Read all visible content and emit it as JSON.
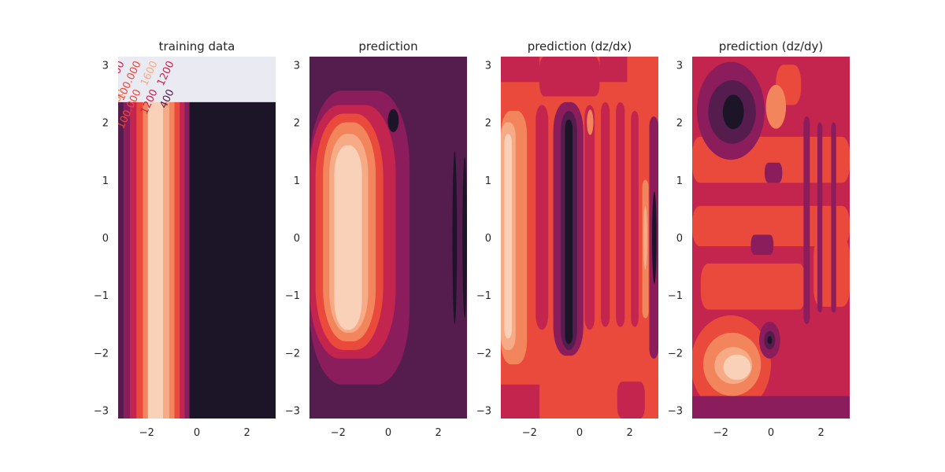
{
  "figure": {
    "background": "#ffffff",
    "colormap": [
      "#1c1528",
      "#551c4e",
      "#8b1d5c",
      "#c3254e",
      "#ea4a3c",
      "#f3855c",
      "#f6ab86",
      "#f9d1b8"
    ]
  },
  "chart_data": [
    {
      "type": "heatmap",
      "title": "training data",
      "xlim": [
        -3.14,
        3.14
      ],
      "ylim": [
        -3.14,
        3.14
      ],
      "x_ticks": [
        -2,
        0,
        2
      ],
      "x_tick_labels": [
        "−2",
        "0",
        "2"
      ],
      "y_ticks": [
        -3,
        -2,
        -1,
        0,
        1,
        2,
        3
      ],
      "y_tick_labels": [
        "−3",
        "−2",
        "−1",
        "0",
        "1",
        "2",
        "3"
      ],
      "grid": false,
      "data_region": {
        "x": [
          -3.14,
          3.14
        ],
        "y": [
          -3.14,
          2.35
        ]
      },
      "column_bands": [
        {
          "x": [
            -3.14,
            -2.9
          ],
          "level": 1
        },
        {
          "x": [
            -2.9,
            -2.65
          ],
          "level": 2
        },
        {
          "x": [
            -2.65,
            -2.4
          ],
          "level": 3
        },
        {
          "x": [
            -2.4,
            -2.15
          ],
          "level": 4
        },
        {
          "x": [
            -2.15,
            -1.95
          ],
          "level": 5
        },
        {
          "x": [
            -1.95,
            -1.35
          ],
          "level": 7
        },
        {
          "x": [
            -1.35,
            -1.1
          ],
          "level": 6
        },
        {
          "x": [
            -1.1,
            -0.9
          ],
          "level": 5
        },
        {
          "x": [
            -0.9,
            -0.7
          ],
          "level": 4
        },
        {
          "x": [
            -0.7,
            -0.5
          ],
          "level": 3
        },
        {
          "x": [
            -0.5,
            -0.3
          ],
          "level": 2
        },
        {
          "x": [
            -0.3,
            3.14
          ],
          "level": 0
        }
      ],
      "contour_labels": [
        "1600",
        "100.000",
        "1600",
        "1200",
        "1600",
        "100.000",
        "1200",
        "400"
      ]
    },
    {
      "type": "heatmap",
      "title": "prediction",
      "xlim": [
        -3.14,
        3.14
      ],
      "ylim": [
        -3.14,
        3.14
      ],
      "x_ticks": [
        -2,
        0,
        2
      ],
      "x_tick_labels": [
        "−2",
        "0",
        "2"
      ],
      "y_ticks": [
        -3,
        -2,
        -1,
        0,
        1,
        2,
        3
      ],
      "y_tick_labels": [
        "−3",
        "−2",
        "−1",
        "0",
        "1",
        "2",
        "3"
      ],
      "grid": false,
      "background_level": 1,
      "shapes": [
        {
          "kind": "rect",
          "x": [
            -3.14,
            0.85
          ],
          "y": [
            -2.55,
            2.55
          ],
          "rx": 1.3,
          "level": 2
        },
        {
          "kind": "rect",
          "x": [
            -3.14,
            0.3
          ],
          "y": [
            -2.1,
            2.3
          ],
          "rx": 1.2,
          "level": 3
        },
        {
          "kind": "rect",
          "x": [
            -2.9,
            -0.2
          ],
          "y": [
            -1.95,
            2.15
          ],
          "rx": 1.1,
          "level": 4
        },
        {
          "kind": "rect",
          "x": [
            -2.6,
            -0.5
          ],
          "y": [
            -1.8,
            2.0
          ],
          "rx": 0.9,
          "level": 5
        },
        {
          "kind": "rect",
          "x": [
            -2.35,
            -0.8
          ],
          "y": [
            -1.65,
            1.8
          ],
          "rx": 0.7,
          "level": 6
        },
        {
          "kind": "rect",
          "x": [
            -2.15,
            -1.05
          ],
          "y": [
            -1.6,
            1.6
          ],
          "rx": 0.5,
          "level": 7
        },
        {
          "kind": "ellipse",
          "cx": 0.2,
          "cy": 2.03,
          "rx": 0.22,
          "ry": 0.2,
          "level": 0
        },
        {
          "kind": "ellipse",
          "cx": 2.65,
          "cy": 0.0,
          "rx": 0.09,
          "ry": 1.5,
          "level": 0
        },
        {
          "kind": "ellipse",
          "cx": 3.05,
          "cy": 0.0,
          "rx": 0.09,
          "ry": 1.4,
          "level": 0
        }
      ]
    },
    {
      "type": "heatmap",
      "title": "prediction (dz/dx)",
      "xlim": [
        -3.14,
        3.14
      ],
      "ylim": [
        -3.14,
        3.14
      ],
      "x_ticks": [
        -2,
        0,
        2
      ],
      "x_tick_labels": [
        "−2",
        "0",
        "2"
      ],
      "y_ticks": [
        -3,
        -2,
        -1,
        0,
        1,
        2,
        3
      ],
      "y_tick_labels": [
        "−3",
        "−2",
        "−1",
        "0",
        "1",
        "2",
        "3"
      ],
      "grid": false,
      "background_level": 4,
      "shapes": [
        {
          "kind": "rect",
          "x": [
            -3.14,
            -1.6
          ],
          "y": [
            2.7,
            3.14
          ],
          "rx": 0,
          "level": 3
        },
        {
          "kind": "rect",
          "x": [
            -1.6,
            0.8
          ],
          "y": [
            2.45,
            3.14
          ],
          "rx": 0.2,
          "level": 3
        },
        {
          "kind": "rect",
          "x": [
            0.8,
            1.9
          ],
          "y": [
            2.7,
            3.14
          ],
          "rx": 0,
          "level": 3
        },
        {
          "kind": "rect",
          "x": [
            -3.14,
            -1.6
          ],
          "y": [
            -3.14,
            -2.55
          ],
          "rx": 0,
          "level": 3
        },
        {
          "kind": "rect",
          "x": [
            1.5,
            2.6
          ],
          "y": [
            -3.14,
            -2.5
          ],
          "rx": 0.2,
          "level": 3
        },
        {
          "kind": "rect",
          "x": [
            -3.14,
            -2.1
          ],
          "y": [
            -2.2,
            2.2
          ],
          "rx": 0.4,
          "level": 5
        },
        {
          "kind": "rect",
          "x": [
            -3.14,
            -2.55
          ],
          "y": [
            -1.95,
            2.0
          ],
          "rx": 0.25,
          "level": 6
        },
        {
          "kind": "rect",
          "x": [
            -3.0,
            -2.7
          ],
          "y": [
            -1.75,
            1.8
          ],
          "rx": 0.15,
          "level": 7
        },
        {
          "kind": "rect",
          "x": [
            -1.75,
            -1.25
          ],
          "y": [
            -1.6,
            2.3
          ],
          "rx": 0.25,
          "level": 3
        },
        {
          "kind": "rect",
          "x": [
            -1.05,
            0.15
          ],
          "y": [
            -2.05,
            2.35
          ],
          "rx": 0.5,
          "level": 2
        },
        {
          "kind": "rect",
          "x": [
            -0.75,
            -0.1
          ],
          "y": [
            -1.95,
            2.2
          ],
          "rx": 0.35,
          "level": 1
        },
        {
          "kind": "rect",
          "x": [
            -0.58,
            -0.28
          ],
          "y": [
            -1.85,
            2.05
          ],
          "rx": 0.15,
          "level": 0
        },
        {
          "kind": "rect",
          "x": [
            0.2,
            0.6
          ],
          "y": [
            -1.6,
            2.3
          ],
          "rx": 0.2,
          "level": 3
        },
        {
          "kind": "ellipse",
          "cx": 0.42,
          "cy": 2.0,
          "rx": 0.13,
          "ry": 0.22,
          "level": 5
        },
        {
          "kind": "rect",
          "x": [
            0.85,
            1.2
          ],
          "y": [
            -1.55,
            2.35
          ],
          "rx": 0.17,
          "level": 3
        },
        {
          "kind": "rect",
          "x": [
            1.45,
            1.8
          ],
          "y": [
            -1.55,
            2.35
          ],
          "rx": 0.17,
          "level": 3
        },
        {
          "kind": "rect",
          "x": [
            2.05,
            2.35
          ],
          "y": [
            -1.55,
            2.2
          ],
          "rx": 0.15,
          "level": 3
        },
        {
          "kind": "rect",
          "x": [
            2.5,
            2.75
          ],
          "y": [
            -1.4,
            1.0
          ],
          "rx": 0.12,
          "level": 5
        },
        {
          "kind": "ellipse",
          "cx": 2.62,
          "cy": 0.0,
          "rx": 0.08,
          "ry": 0.55,
          "level": 6
        },
        {
          "kind": "rect",
          "x": [
            2.78,
            3.14
          ],
          "y": [
            -2.1,
            2.1
          ],
          "rx": 0.17,
          "level": 2
        },
        {
          "kind": "ellipse",
          "cx": 2.98,
          "cy": 0.0,
          "rx": 0.09,
          "ry": 0.8,
          "level": 0
        }
      ]
    },
    {
      "type": "heatmap",
      "title": "prediction (dz/dy)",
      "xlim": [
        -3.14,
        3.14
      ],
      "ylim": [
        -3.14,
        3.14
      ],
      "x_ticks": [
        -2,
        0,
        2
      ],
      "x_tick_labels": [
        "−2",
        "0",
        "2"
      ],
      "y_ticks": [
        -3,
        -2,
        -1,
        0,
        1,
        2,
        3
      ],
      "y_tick_labels": [
        "−3",
        "−2",
        "−1",
        "0",
        "1",
        "2",
        "3"
      ],
      "grid": false,
      "background_level": 3,
      "shapes": [
        {
          "kind": "rect",
          "x": [
            -3.14,
            3.14
          ],
          "y": [
            0.95,
            1.75
          ],
          "rx": 0.3,
          "level": 4
        },
        {
          "kind": "rect",
          "x": [
            -3.14,
            3.14
          ],
          "y": [
            -0.15,
            0.55
          ],
          "rx": 0.3,
          "level": 4
        },
        {
          "kind": "rect",
          "x": [
            -2.8,
            1.4
          ],
          "y": [
            -1.25,
            -0.45
          ],
          "rx": 0.3,
          "level": 4
        },
        {
          "kind": "rect",
          "x": [
            1.7,
            3.14
          ],
          "y": [
            -1.2,
            0.0
          ],
          "rx": 0.3,
          "level": 4
        },
        {
          "kind": "rect",
          "x": [
            0.2,
            1.2
          ],
          "y": [
            2.3,
            3.0
          ],
          "rx": 0.3,
          "level": 4
        },
        {
          "kind": "rect",
          "x": [
            1.3,
            1.55
          ],
          "y": [
            -1.5,
            2.1
          ],
          "rx": 0.12,
          "level": 2
        },
        {
          "kind": "rect",
          "x": [
            1.85,
            2.05
          ],
          "y": [
            -1.3,
            2.0
          ],
          "rx": 0.1,
          "level": 2
        },
        {
          "kind": "rect",
          "x": [
            2.4,
            2.6
          ],
          "y": [
            -1.3,
            2.0
          ],
          "rx": 0.1,
          "level": 2
        },
        {
          "kind": "rect",
          "x": [
            -0.8,
            0.1
          ],
          "y": [
            -0.3,
            0.05
          ],
          "rx": 0.15,
          "level": 2
        },
        {
          "kind": "rect",
          "x": [
            -0.25,
            0.45
          ],
          "y": [
            0.95,
            1.3
          ],
          "rx": 0.15,
          "level": 2
        },
        {
          "kind": "ellipse",
          "cx": -1.6,
          "cy": 2.2,
          "rx": 1.35,
          "ry": 0.85,
          "level": 2
        },
        {
          "kind": "ellipse",
          "cx": -1.55,
          "cy": 2.18,
          "rx": 0.95,
          "ry": 0.55,
          "level": 1
        },
        {
          "kind": "ellipse",
          "cx": -1.5,
          "cy": 2.18,
          "rx": 0.42,
          "ry": 0.3,
          "level": 0
        },
        {
          "kind": "ellipse",
          "cx": 0.2,
          "cy": 2.27,
          "rx": 0.4,
          "ry": 0.38,
          "level": 5
        },
        {
          "kind": "ellipse",
          "cx": -1.6,
          "cy": -2.2,
          "rx": 1.6,
          "ry": 0.85,
          "level": 4
        },
        {
          "kind": "ellipse",
          "cx": -1.55,
          "cy": -2.2,
          "rx": 1.15,
          "ry": 0.55,
          "level": 5
        },
        {
          "kind": "ellipse",
          "cx": -1.5,
          "cy": -2.22,
          "rx": 0.75,
          "ry": 0.32,
          "level": 6
        },
        {
          "kind": "ellipse",
          "cx": -1.35,
          "cy": -2.25,
          "rx": 0.55,
          "ry": 0.22,
          "level": 7
        },
        {
          "kind": "ellipse",
          "cx": -0.05,
          "cy": -1.78,
          "rx": 0.42,
          "ry": 0.32,
          "level": 2
        },
        {
          "kind": "ellipse",
          "cx": -0.05,
          "cy": -1.78,
          "rx": 0.22,
          "ry": 0.16,
          "level": 1
        },
        {
          "kind": "ellipse",
          "cx": -0.05,
          "cy": -1.78,
          "rx": 0.09,
          "ry": 0.07,
          "level": 0
        },
        {
          "kind": "rect",
          "x": [
            -3.14,
            3.14
          ],
          "y": [
            -3.14,
            -2.75
          ],
          "rx": 0,
          "level": 2
        }
      ]
    }
  ]
}
